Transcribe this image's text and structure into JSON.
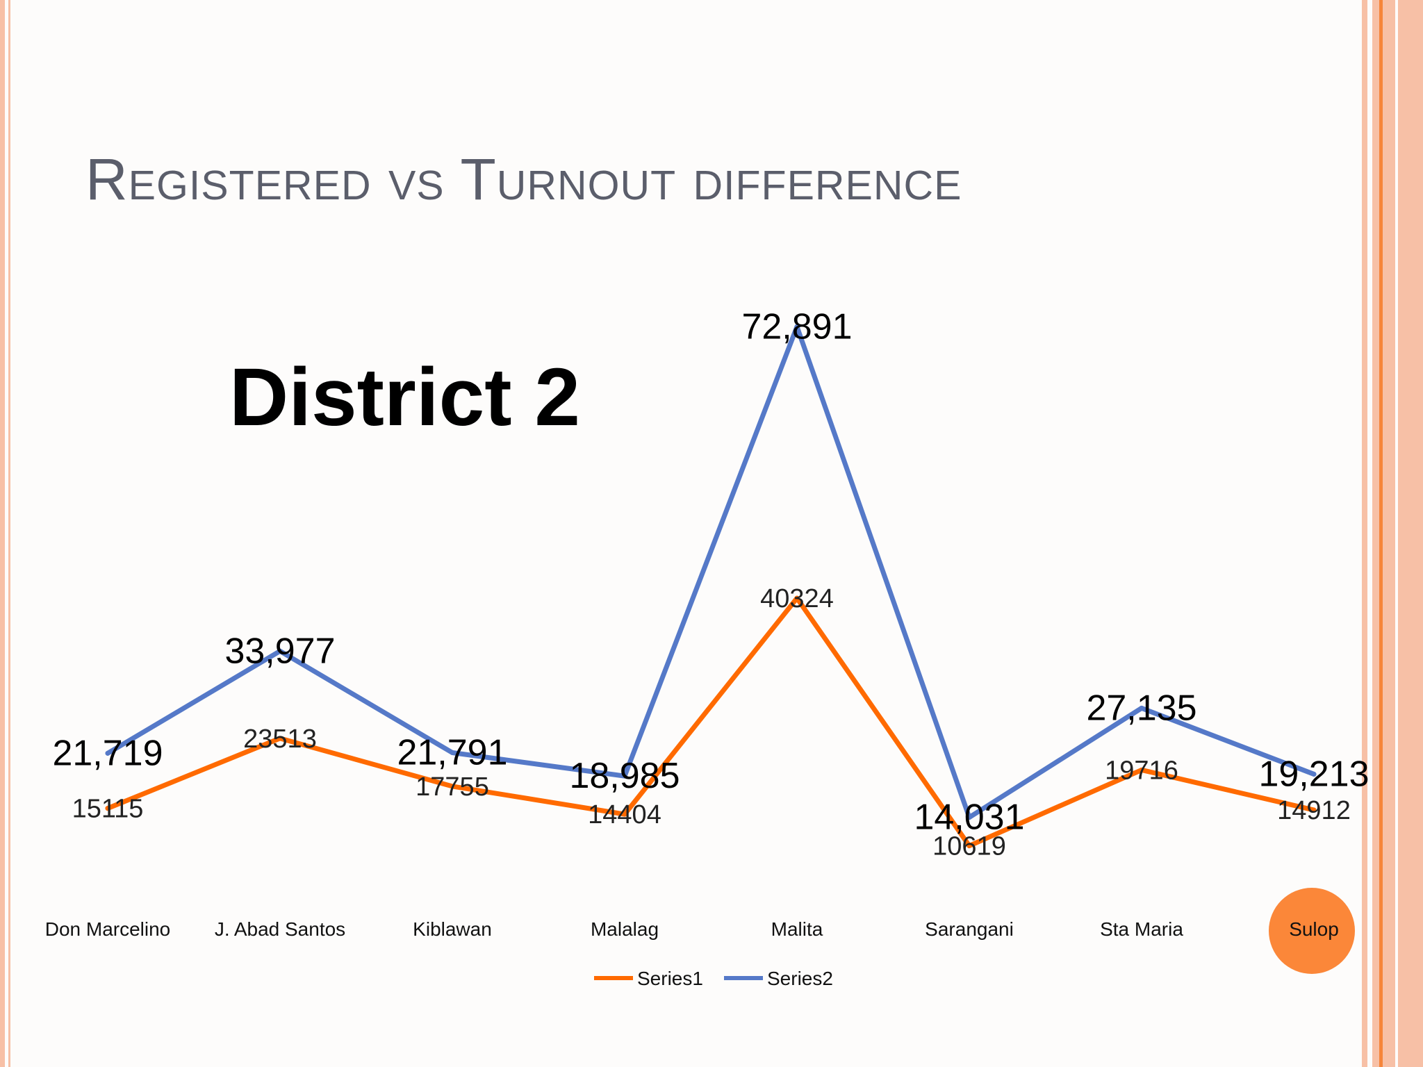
{
  "slide": {
    "title": "Registered vs Turnout difference",
    "title_color": "#5b5e6b",
    "accent_color": "#f7c0a6",
    "accent_dark": "#f6853a",
    "highlight_color": "#fb8739"
  },
  "chart_data": {
    "type": "line",
    "title": "",
    "xlabel": "",
    "ylabel": "",
    "annotation": "District 2",
    "categories": [
      "Don Marcelino",
      "J. Abad Santos",
      "Kiblawan",
      "Malalag",
      "Malita",
      "Sarangani",
      "Sta Maria",
      "Sulop"
    ],
    "highlighted_category": "Sulop",
    "ylim": [
      0,
      80000
    ],
    "grid": false,
    "legend_position": "bottom",
    "series": [
      {
        "name": "Series1",
        "color": "#ff6a00",
        "values": [
          15115,
          23513,
          17755,
          14404,
          40324,
          10619,
          19716,
          14912
        ],
        "labels": [
          "15115",
          "23513",
          "17755",
          "14404",
          "40324",
          "10619",
          "19716",
          "14912"
        ]
      },
      {
        "name": "Series2",
        "color": "#5579c8",
        "values": [
          21719,
          33977,
          21791,
          18985,
          72891,
          14031,
          27135,
          19213
        ],
        "labels": [
          "21,719",
          "33,977",
          "21,791",
          "18,985",
          "72,891",
          "14,031",
          "27,135",
          "19,213"
        ]
      }
    ]
  }
}
